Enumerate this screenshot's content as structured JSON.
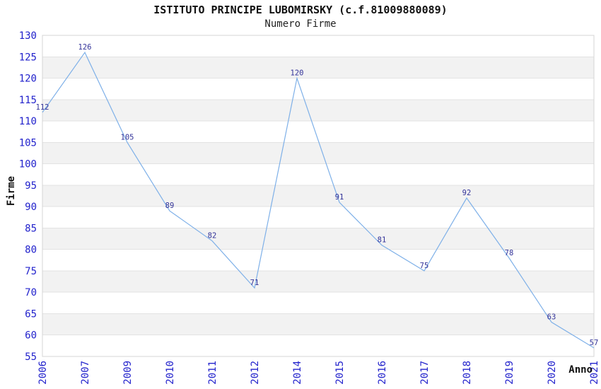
{
  "chart_data": {
    "type": "line",
    "title": "ISTITUTO PRINCIPE LUBOMIRSKY (c.f.81009880089)",
    "subtitle": "Numero Firme",
    "xlabel": "Anno",
    "ylabel": "Firme",
    "categories": [
      "2006",
      "2007",
      "2009",
      "2010",
      "2011",
      "2012",
      "2014",
      "2015",
      "2016",
      "2017",
      "2018",
      "2019",
      "2020",
      "2021"
    ],
    "series": [
      {
        "name": "Numero Firme",
        "values": [
          112,
          126,
          105,
          89,
          82,
          71,
          120,
          91,
          81,
          75,
          92,
          78,
          63,
          57
        ]
      }
    ],
    "ylim": [
      55,
      130
    ],
    "ytick_step": 5,
    "yticks": [
      55,
      60,
      65,
      70,
      75,
      80,
      85,
      90,
      95,
      100,
      105,
      110,
      115,
      120,
      125,
      130
    ],
    "grid": "horizontal-stripes-and-lines",
    "legend_position": "none",
    "point_labels_visible": true,
    "colors": {
      "line": "#7EB0E8",
      "tick_label": "#2222CC",
      "point_label": "#333399",
      "stripe": "#F2F2F2",
      "grid_line": "#E3E3E3",
      "plot_border": "#D4D4D4",
      "text": "#111111",
      "background": "#FFFFFF"
    }
  }
}
